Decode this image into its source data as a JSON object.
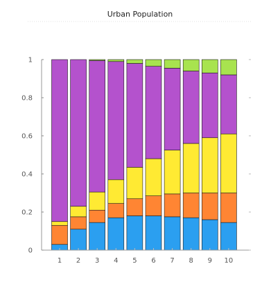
{
  "chart_data": {
    "type": "bar",
    "stacked": true,
    "title": "Urban Population",
    "xlabel": "",
    "ylabel": "",
    "categories": [
      "1",
      "2",
      "3",
      "4",
      "5",
      "6",
      "7",
      "8",
      "9",
      "10"
    ],
    "ylim": [
      0,
      1
    ],
    "yticks": [
      "0",
      "0.2",
      "0.4",
      "0.6",
      "0.8",
      "1"
    ],
    "grid": false,
    "legend": "none",
    "series": [
      {
        "color": "#2b9ff0",
        "values": [
          0.03,
          0.11,
          0.145,
          0.17,
          0.18,
          0.18,
          0.175,
          0.17,
          0.16,
          0.145
        ]
      },
      {
        "color": "#ff8533",
        "values": [
          0.1,
          0.065,
          0.065,
          0.075,
          0.09,
          0.105,
          0.12,
          0.13,
          0.14,
          0.155
        ]
      },
      {
        "color": "#ffea33",
        "values": [
          0.02,
          0.055,
          0.095,
          0.125,
          0.165,
          0.195,
          0.23,
          0.26,
          0.29,
          0.31
        ]
      },
      {
        "color": "#b452cd",
        "values": [
          0.85,
          0.77,
          0.69,
          0.62,
          0.545,
          0.485,
          0.43,
          0.38,
          0.34,
          0.31
        ]
      },
      {
        "color": "#a8e34f",
        "values": [
          0.0,
          0.0,
          0.005,
          0.01,
          0.02,
          0.035,
          0.045,
          0.06,
          0.07,
          0.08
        ]
      }
    ]
  }
}
